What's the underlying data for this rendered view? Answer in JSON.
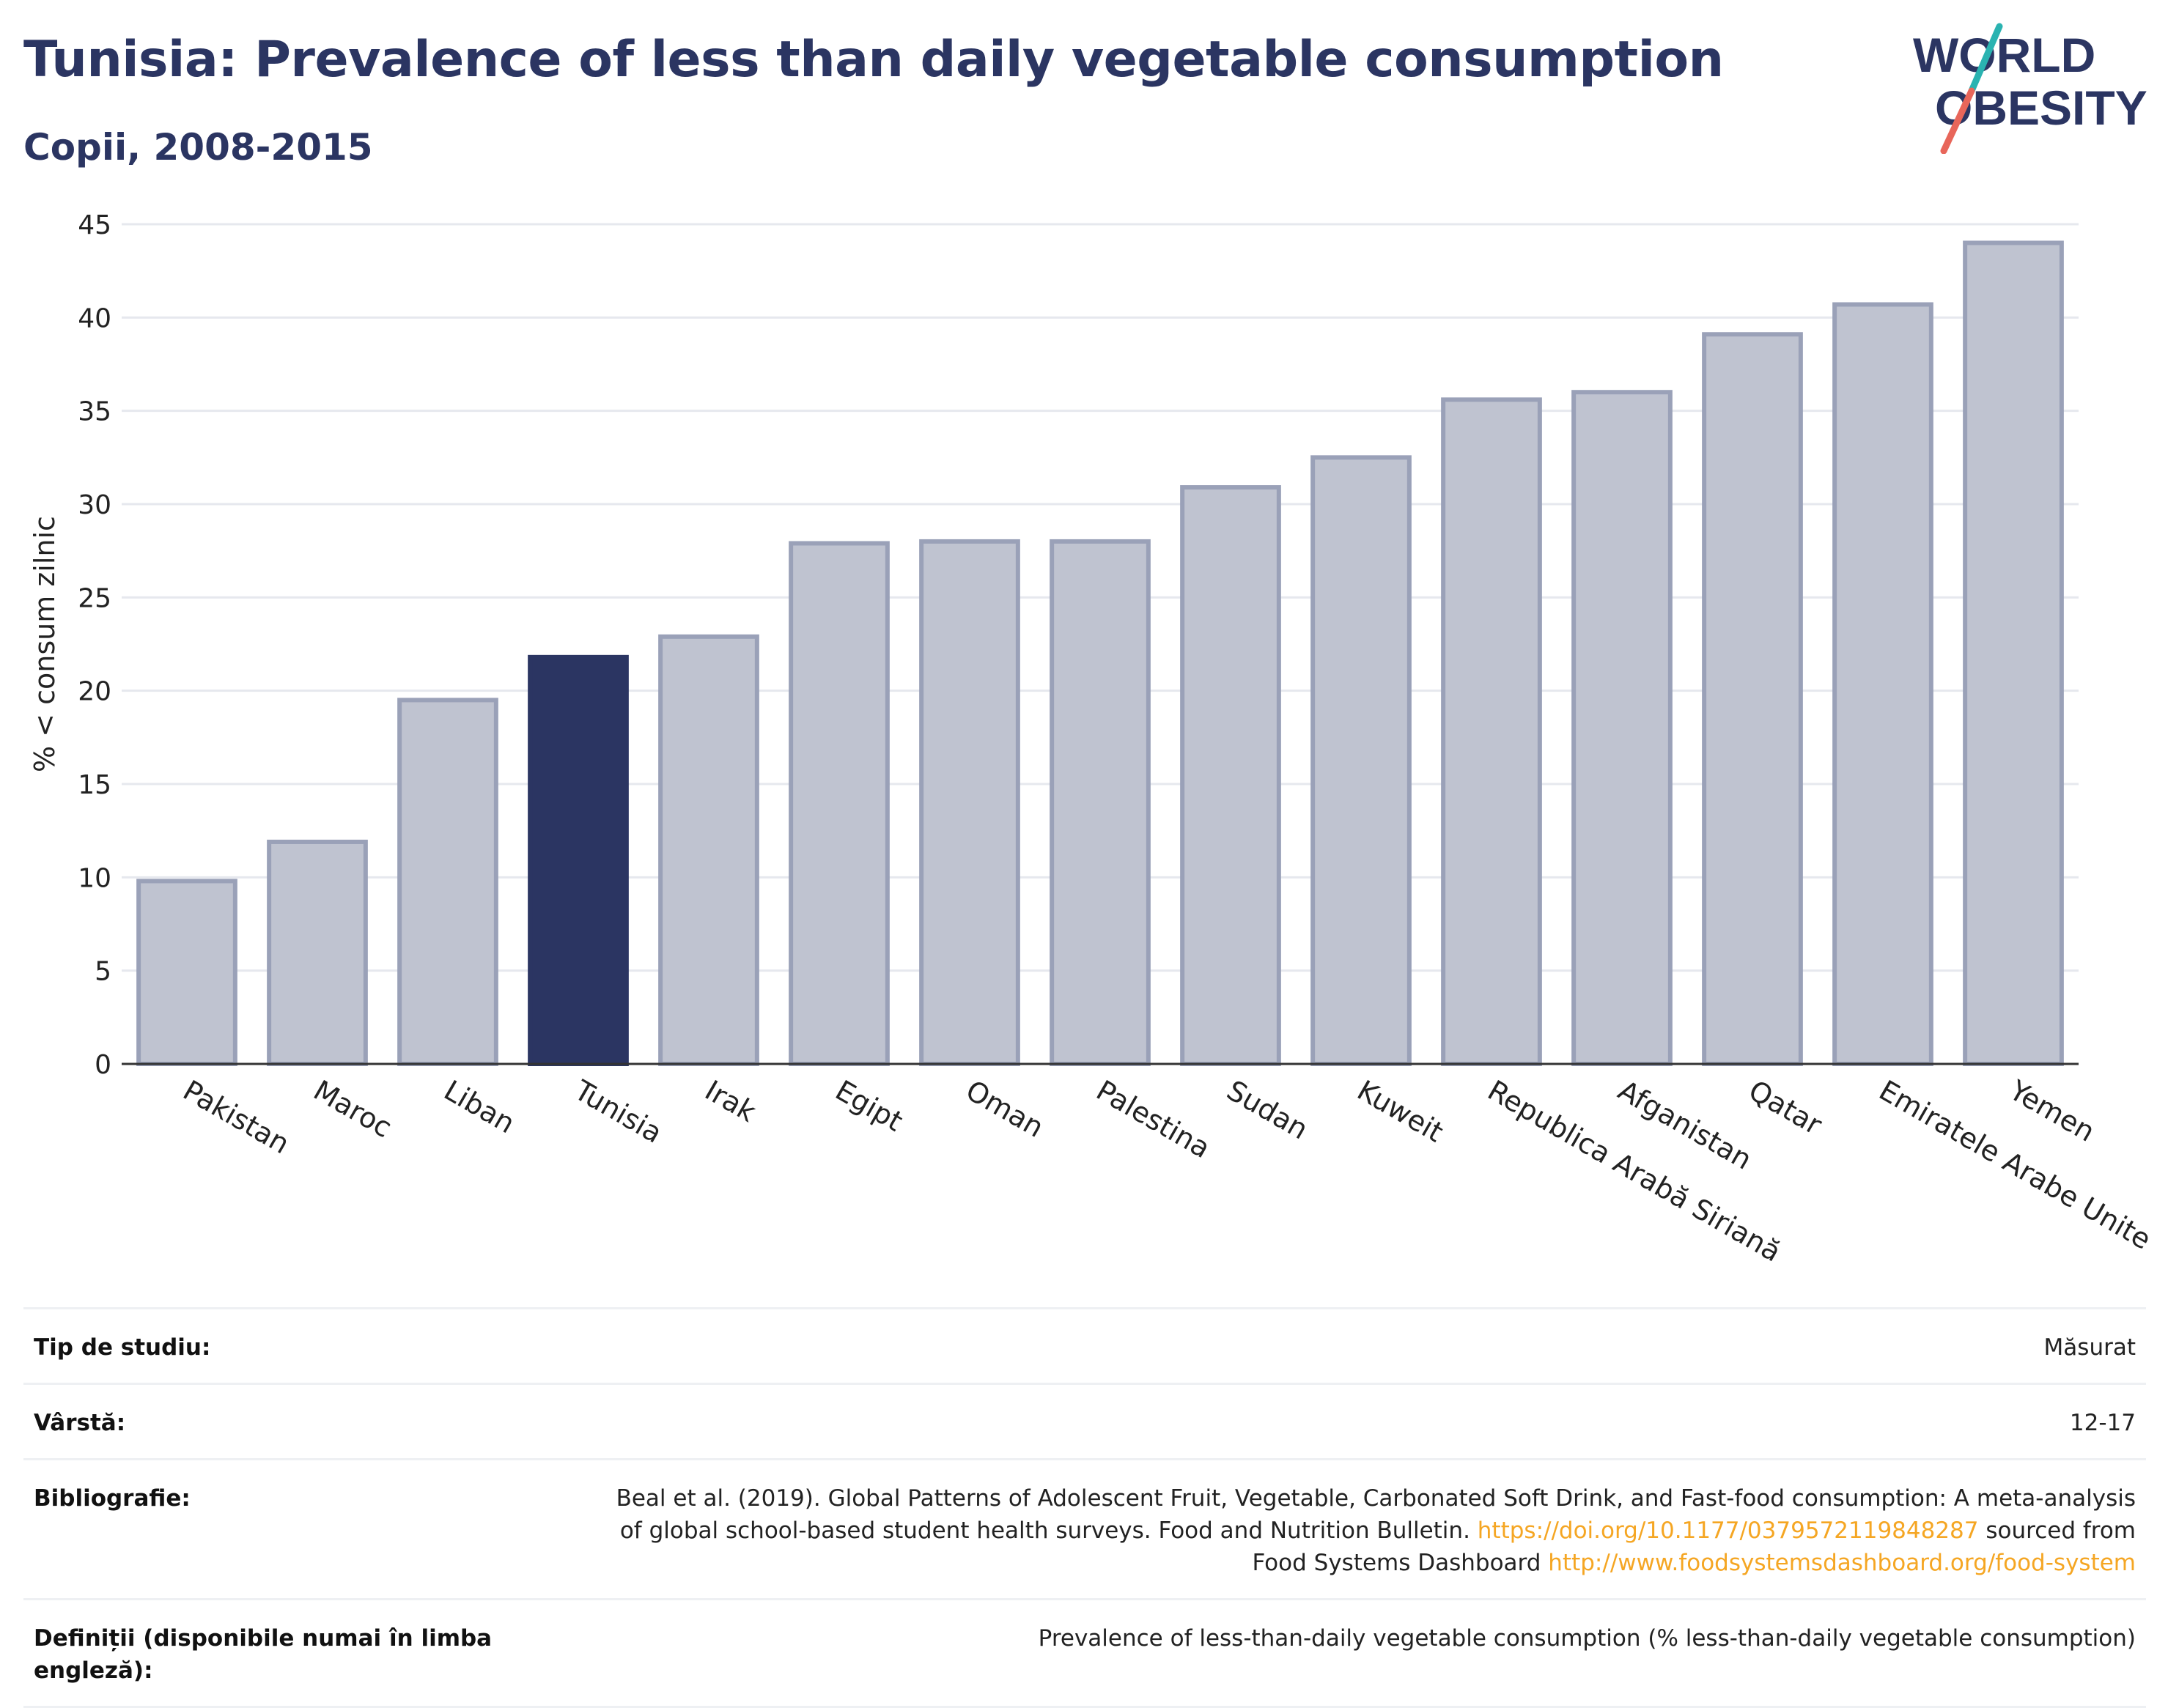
{
  "header": {
    "title": "Tunisia: Prevalence of less than daily vegetable consumption",
    "subtitle": "Copii, 2008-2015"
  },
  "logo": {
    "line1": "WORLD",
    "line2": "OBESITY",
    "colors": {
      "text": "#2b3562",
      "slash_teal": "#2ab3b1",
      "slash_coral": "#e8665a"
    }
  },
  "colors": {
    "highlight": "#2b3562",
    "bar": "#bfc3d0",
    "bar_border": "#9aa1b8",
    "grid": "#e6e8ee",
    "axis": "#333333"
  },
  "chart_data": {
    "type": "bar",
    "ylabel": "% < consum zilnic",
    "xlabel": "",
    "ylim": [
      0,
      45
    ],
    "yticks": [
      0,
      5,
      10,
      15,
      20,
      25,
      30,
      35,
      40,
      45
    ],
    "grid": true,
    "highlight": "Tunisia",
    "categories": [
      "Pakistan",
      "Maroc",
      "Liban",
      "Tunisia",
      "Irak",
      "Egipt",
      "Oman",
      "Palestina",
      "Sudan",
      "Kuweit",
      "Republica Arabă Siriană",
      "Afganistan",
      "Qatar",
      "Emiratele Arabe Unite",
      "Yemen"
    ],
    "values": [
      9.8,
      11.9,
      19.5,
      21.8,
      22.9,
      27.9,
      28.0,
      28.0,
      30.9,
      32.5,
      35.6,
      36.0,
      39.1,
      40.7,
      44.0
    ]
  },
  "meta": [
    {
      "label": "Tip de studiu:",
      "value": "Măsurat"
    },
    {
      "label": "Vârstă:",
      "value": "12-17"
    },
    {
      "label": "Bibliografie:",
      "value_parts": {
        "line1": "Beal et al. (2019). Global Patterns of Adolescent Fruit, Vegetable, Carbonated Soft Drink, and Fast-food consumption: A meta-analysis",
        "line2_text": "of global school-based student health surveys. Food and Nutrition Bulletin.",
        "line2_link": "https://doi.org/10.1177/0379572119848287",
        "line2_after": "sourced from",
        "line3_text": "Food Systems Dashboard",
        "line3_link": "http://www.foodsystemsdashboard.org/food-system"
      }
    },
    {
      "label": "Definiții (disponibile numai în limba engleză):",
      "value": "Prevalence of less-than-daily vegetable consumption (% less-than-daily vegetable consumption)"
    }
  ]
}
